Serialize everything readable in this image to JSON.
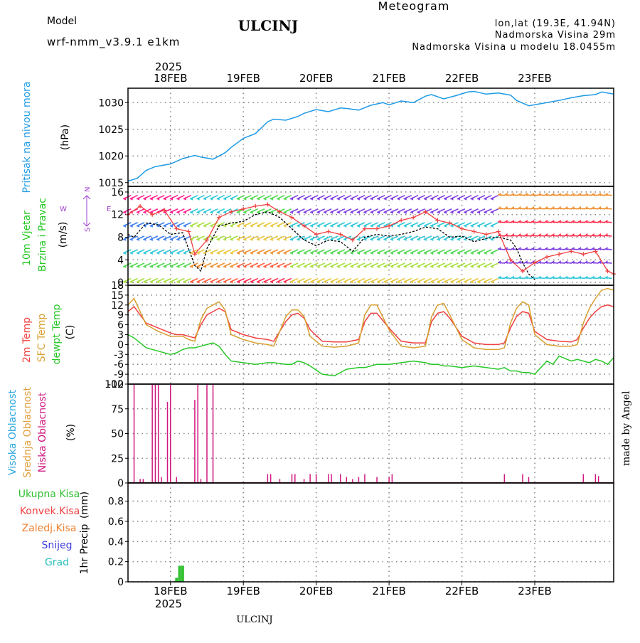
{
  "header": {
    "meteogram_label": "Meteogram",
    "model_label": "Model",
    "model_name": "wrf-nmm_v3.9.1  e1km",
    "station": "ULCINJ",
    "lonlat": "lon,lat (19.3E, 41.94N)",
    "altitude": "Nadmorska Visina 29m",
    "model_altitude": "Nadmorska Visina u modelu 18.0455m",
    "footer_station": "ULCINJ",
    "credit": "made by Angel"
  },
  "colors": {
    "pressure": "#1e9be6",
    "temp2m": "#f04040",
    "sfc_temp": "#d8a030",
    "dewpoint": "#28c828",
    "cloud_high": "#30a8e0",
    "cloud_mid": "#e0a040",
    "cloud_low": "#d01880",
    "precip_total": "#30c030",
    "precip_conv": "#f04040",
    "precip_frozen": "#f08030",
    "snow": "#4040e0",
    "hail": "#30c0c0",
    "title_orange": "#e0b060",
    "model_purple": "#a040d0"
  },
  "time_axis": {
    "year": "2025",
    "days": [
      "18FEB",
      "19FEB",
      "20FEB",
      "21FEB",
      "22FEB",
      "23FEB"
    ],
    "start_hour": -14,
    "end_hour": 146
  },
  "chart_data": [
    {
      "type": "line",
      "id": "pressure",
      "ylabel_lines": [
        "Pritisak na nivou mora"
      ],
      "unit": "(hPa)",
      "yticks": [
        1015,
        1020,
        1025,
        1030
      ],
      "ylim": [
        1014.3,
        1032.7
      ],
      "grid": true,
      "series": [
        {
          "name": "Pritisak na nivou mora",
          "color_key": "pressure",
          "x": [
            -14,
            -11,
            -8,
            -5,
            -2,
            0,
            4,
            8,
            10,
            14,
            18,
            20,
            24,
            28,
            32,
            34,
            38,
            42,
            44,
            48,
            52,
            56,
            58,
            62,
            66,
            70,
            72,
            76,
            80,
            84,
            86,
            90,
            94,
            98,
            100,
            104,
            108,
            112,
            114,
            118,
            122,
            126,
            128,
            132,
            136,
            140,
            142,
            146
          ],
          "y": [
            1015.3,
            1015.8,
            1017.3,
            1018.0,
            1018.3,
            1018.5,
            1019.5,
            1020.1,
            1019.8,
            1019.4,
            1020.6,
            1021.6,
            1023.3,
            1024.2,
            1026.4,
            1026.9,
            1026.7,
            1027.4,
            1028.0,
            1028.7,
            1028.3,
            1029.0,
            1028.9,
            1028.6,
            1029.5,
            1030.0,
            1029.6,
            1030.3,
            1030.0,
            1031.2,
            1031.5,
            1030.7,
            1031.3,
            1032.0,
            1032.1,
            1031.6,
            1031.8,
            1031.4,
            1030.4,
            1029.4,
            1029.8,
            1030.2,
            1030.4,
            1030.9,
            1031.3,
            1031.5,
            1032.0,
            1031.6
          ]
        }
      ]
    },
    {
      "type": "line",
      "id": "wind",
      "ylabel_lines": [
        "10m Vjetar",
        "Brzina i Pravac"
      ],
      "unit": "(m/s)",
      "compass": {
        "n": "N",
        "s": "S",
        "e": "E",
        "w": "W"
      },
      "yticks": [
        0,
        4,
        8,
        12,
        16
      ],
      "ylim": [
        -0.5,
        17
      ],
      "grid": true,
      "series": [
        {
          "name": "wind speed",
          "color": "#000000",
          "x": [
            -14,
            -12,
            -8,
            -4,
            0,
            4,
            8,
            10,
            12,
            16,
            20,
            24,
            28,
            32,
            36,
            40,
            44,
            48,
            52,
            56,
            60,
            64,
            68,
            72,
            76,
            80,
            84,
            88,
            92,
            96,
            100,
            104,
            108,
            112,
            114,
            116,
            118,
            120
          ],
          "y": [
            8.5,
            8.0,
            10.5,
            10.2,
            8.5,
            8.8,
            3.0,
            2.0,
            6.0,
            10.0,
            10.5,
            10.8,
            12.0,
            12.5,
            11.5,
            9.5,
            7.5,
            6.5,
            7.5,
            7.2,
            5.5,
            8.0,
            8.5,
            8.2,
            8.5,
            9.0,
            9.8,
            9.5,
            8.0,
            8.2,
            7.2,
            7.8,
            8.0,
            7.5,
            6.0,
            3.5,
            1.5,
            0.5
          ]
        },
        {
          "name": "gust",
          "color": "#f04040",
          "x": [
            -14,
            -10,
            -6,
            -2,
            2,
            6,
            8,
            12,
            16,
            20,
            24,
            28,
            32,
            36,
            40,
            44,
            48,
            52,
            56,
            60,
            64,
            68,
            72,
            76,
            80,
            84,
            88,
            92,
            96,
            100,
            104,
            108,
            112,
            116,
            120,
            124,
            128,
            132,
            136,
            140,
            144,
            146
          ],
          "y": [
            12.0,
            13.5,
            12.0,
            12.8,
            9.5,
            9.0,
            5.0,
            7.5,
            11.5,
            12.5,
            13.0,
            13.5,
            13.8,
            12.5,
            11.5,
            10.0,
            8.5,
            9.0,
            8.5,
            7.5,
            9.5,
            9.5,
            10.0,
            11.0,
            11.5,
            12.5,
            11.0,
            10.5,
            9.5,
            9.0,
            8.5,
            9.0,
            4.0,
            2.0,
            3.5,
            4.5,
            5.0,
            5.5,
            5.0,
            5.5,
            2.0,
            1.5
          ]
        }
      ],
      "barb_speeds": [
        2,
        5,
        9,
        13,
        16
      ],
      "barb_rows": [
        0.7,
        3.4,
        5.8,
        8.2,
        10.6,
        13.0,
        15.4
      ]
    },
    {
      "type": "line",
      "id": "temperature",
      "ylabel_lines": [
        "2m Temp",
        "SFC Temp",
        "dewpt Temp"
      ],
      "unit": "(C)",
      "yticks": [
        18,
        15,
        12,
        9,
        6,
        3,
        0,
        -3,
        -6,
        -9,
        -12
      ],
      "ylim": [
        -12,
        18
      ],
      "grid": true,
      "series": [
        {
          "name": "2m Temp",
          "color_key": "temp2m",
          "x": [
            -14,
            -12,
            -8,
            -4,
            0,
            2,
            4,
            6,
            8,
            10,
            12,
            14,
            16,
            18,
            20,
            24,
            28,
            32,
            34,
            38,
            40,
            42,
            44,
            46,
            50,
            54,
            58,
            62,
            64,
            66,
            68,
            72,
            76,
            80,
            84,
            86,
            88,
            90,
            92,
            96,
            100,
            104,
            108,
            110,
            112,
            114,
            116,
            118,
            120,
            124,
            128,
            132,
            134,
            136,
            138,
            140,
            142,
            144,
            146
          ],
          "y": [
            10.0,
            11.5,
            6.5,
            5.0,
            3.5,
            3.0,
            3.0,
            2.5,
            2.0,
            6.0,
            9.0,
            10.0,
            11.0,
            10.0,
            4.5,
            3.0,
            2.0,
            1.5,
            1.0,
            7.0,
            9.0,
            9.5,
            8.0,
            4.5,
            1.0,
            0.8,
            0.8,
            1.5,
            7.0,
            9.5,
            9.5,
            5.0,
            1.0,
            0.5,
            0.5,
            7.0,
            9.5,
            10.0,
            8.0,
            2.5,
            0.5,
            0.0,
            0.0,
            0.5,
            5.0,
            8.5,
            10.0,
            9.5,
            4.0,
            1.5,
            1.0,
            0.8,
            1.5,
            5.0,
            8.0,
            10.0,
            11.5,
            12.0,
            11.5
          ]
        },
        {
          "name": "SFC Temp",
          "color_key": "sfc_temp",
          "x": [
            -14,
            -12,
            -8,
            -4,
            0,
            2,
            4,
            6,
            8,
            10,
            12,
            14,
            16,
            18,
            20,
            24,
            28,
            32,
            34,
            38,
            40,
            42,
            44,
            46,
            50,
            54,
            58,
            62,
            64,
            66,
            68,
            72,
            76,
            80,
            84,
            86,
            88,
            90,
            92,
            96,
            100,
            104,
            108,
            110,
            112,
            114,
            116,
            118,
            120,
            124,
            128,
            132,
            134,
            136,
            138,
            140,
            142,
            144,
            146
          ],
          "y": [
            12.0,
            14.0,
            6.0,
            4.0,
            2.5,
            2.5,
            2.5,
            1.5,
            1.0,
            7.5,
            11.0,
            12.0,
            13.0,
            10.5,
            3.0,
            1.5,
            0.5,
            0.0,
            -0.5,
            8.5,
            10.5,
            10.5,
            8.5,
            2.5,
            -0.5,
            -0.8,
            -0.5,
            0.5,
            9.0,
            12.0,
            12.0,
            4.5,
            -0.5,
            -1.0,
            -0.5,
            8.5,
            12.0,
            12.5,
            9.0,
            1.5,
            -1.0,
            -1.5,
            -1.5,
            -1.0,
            6.5,
            11.0,
            13.0,
            12.0,
            3.0,
            0.0,
            -0.5,
            -0.5,
            0.0,
            6.5,
            11.0,
            14.0,
            16.5,
            17.0,
            16.5
          ]
        },
        {
          "name": "dewpt Temp",
          "color_key": "dewpoint",
          "x": [
            -14,
            -12,
            -8,
            -4,
            0,
            2,
            4,
            6,
            8,
            10,
            12,
            14,
            16,
            18,
            20,
            24,
            28,
            32,
            34,
            38,
            40,
            42,
            44,
            46,
            50,
            54,
            58,
            62,
            64,
            66,
            68,
            72,
            76,
            80,
            84,
            86,
            88,
            90,
            92,
            96,
            100,
            104,
            108,
            110,
            112,
            114,
            116,
            118,
            120,
            122,
            124,
            126,
            128,
            132,
            134,
            136,
            138,
            140,
            142,
            144,
            146
          ],
          "y": [
            3.0,
            2.0,
            -1.0,
            -2.0,
            -3.0,
            -2.5,
            -1.5,
            -1.0,
            -1.0,
            -0.5,
            0.0,
            0.5,
            -0.5,
            -3.0,
            -5.0,
            -5.5,
            -6.0,
            -5.5,
            -5.5,
            -6.0,
            -6.0,
            -5.0,
            -5.5,
            -6.5,
            -9.0,
            -9.5,
            -7.5,
            -7.0,
            -7.0,
            -6.5,
            -6.0,
            -6.0,
            -5.5,
            -5.0,
            -5.5,
            -6.0,
            -6.0,
            -6.5,
            -6.5,
            -7.0,
            -6.5,
            -7.0,
            -7.5,
            -7.0,
            -8.0,
            -8.0,
            -8.5,
            -8.5,
            -9.0,
            -7.0,
            -5.0,
            -6.0,
            -3.5,
            -5.0,
            -4.5,
            -5.0,
            -5.5,
            -4.5,
            -5.0,
            -6.0,
            -4.0
          ]
        }
      ]
    },
    {
      "type": "bar",
      "id": "clouds",
      "ylabel_lines": [
        "Visoka Oblacnost",
        "Srednja Oblacnost",
        "Niska Oblacnost"
      ],
      "unit": "(%)",
      "yticks": [
        0,
        25,
        50,
        75,
        100
      ],
      "ylim": [
        0,
        100
      ],
      "grid": true,
      "series": [
        {
          "name": "Niska Oblacnost",
          "color_key": "cloud_low",
          "x": [
            -14,
            -12,
            -13,
            -10,
            -9,
            -6,
            -5,
            -4,
            -3,
            -2,
            -1,
            0,
            2,
            4,
            6,
            8,
            9,
            10,
            12,
            13,
            14,
            32,
            33,
            36,
            40,
            41,
            44,
            46,
            48,
            52,
            53,
            56,
            58,
            60,
            62,
            64,
            68,
            72,
            73,
            76,
            110,
            116,
            118,
            136,
            140,
            141
          ],
          "y": [
            0,
            100,
            0,
            4,
            4,
            100,
            100,
            100,
            6,
            0,
            82,
            100,
            6,
            0,
            0,
            84,
            100,
            4,
            100,
            0,
            100,
            9,
            9,
            4,
            9,
            9,
            4,
            9,
            9,
            9,
            9,
            9,
            6,
            4,
            6,
            9,
            6,
            6,
            9,
            0,
            9,
            9,
            6,
            9,
            9,
            7
          ]
        }
      ]
    },
    {
      "type": "bar",
      "id": "precip",
      "ylabel_lines": [
        "1hr Precip",
        "(mm)"
      ],
      "legend": [
        "Ukupna  Kisa",
        "Konvek.Kisa",
        "Zaledj.Kisa",
        "Snijeg",
        "Grad"
      ],
      "yticks": [
        0,
        0.2,
        0.4,
        0.6,
        0.8
      ],
      "ylim": [
        0,
        0.98
      ],
      "grid": true,
      "series": [
        {
          "name": "Ukupna Kisa",
          "color_key": "precip_total",
          "x": [
            2,
            3,
            4
          ],
          "y": [
            0.04,
            0.16,
            0.16
          ]
        }
      ]
    }
  ]
}
